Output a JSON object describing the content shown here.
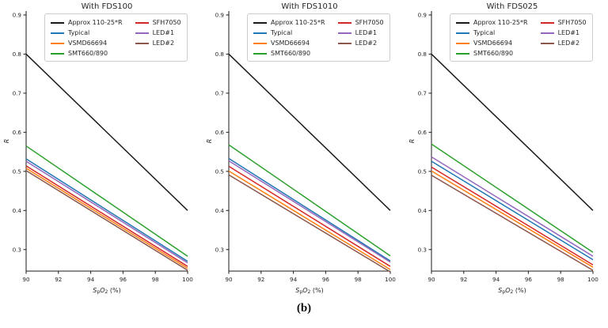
{
  "caption": "(b)",
  "axis_style": {
    "spine_color": "#1a1a1a",
    "tick_color": "#1a1a1a",
    "text_color": "#262626",
    "background": "#ffffff"
  },
  "chart_data": [
    {
      "type": "line",
      "title": "With FDS100",
      "xlabel": "SpO2 (%)",
      "xlabel_rich": [
        [
          "S",
          "i"
        ],
        [
          "p",
          "sub"
        ],
        [
          "O",
          "i"
        ],
        [
          "2",
          "sub"
        ],
        [
          " (%)",
          ""
        ]
      ],
      "ylabel": "R",
      "xlim": [
        90,
        100
      ],
      "ylim": [
        0.245,
        0.91
      ],
      "xticks": [
        90,
        92,
        94,
        96,
        98,
        100
      ],
      "yticks": [
        0.3,
        0.4,
        0.5,
        0.6,
        0.7,
        0.8,
        0.9
      ],
      "grid": false,
      "legend": {
        "position": "upper center",
        "columns": 2
      },
      "x": [
        90,
        100
      ],
      "series": [
        {
          "name": "Approx 110-25*R",
          "color": "#1a1a1a",
          "values": [
            0.8,
            0.4
          ]
        },
        {
          "name": "Typical",
          "color": "#1f77b4",
          "values": [
            0.532,
            0.27
          ]
        },
        {
          "name": "VSMD66694",
          "color": "#ff7f0e",
          "values": [
            0.508,
            0.252
          ]
        },
        {
          "name": "SMT660/890",
          "color": "#2ca02c",
          "values": [
            0.565,
            0.283
          ]
        },
        {
          "name": "SFH7050",
          "color": "#d62728",
          "values": [
            0.514,
            0.257
          ]
        },
        {
          "name": "LED#1",
          "color": "#9467bd",
          "values": [
            0.526,
            0.266
          ]
        },
        {
          "name": "LED#2",
          "color": "#8c564b",
          "values": [
            0.502,
            0.247
          ]
        }
      ]
    },
    {
      "type": "line",
      "title": "With FDS1010",
      "xlabel": "SpO2 (%)",
      "xlabel_rich": [
        [
          "S",
          "i"
        ],
        [
          "p",
          "sub"
        ],
        [
          "O",
          "i"
        ],
        [
          "2",
          "sub"
        ],
        [
          " (%)",
          ""
        ]
      ],
      "ylabel": "R",
      "xlim": [
        90,
        100
      ],
      "ylim": [
        0.245,
        0.91
      ],
      "xticks": [
        90,
        92,
        94,
        96,
        98,
        100
      ],
      "yticks": [
        0.3,
        0.4,
        0.5,
        0.6,
        0.7,
        0.8,
        0.9
      ],
      "grid": false,
      "legend": {
        "position": "upper center",
        "columns": 2
      },
      "x": [
        90,
        100
      ],
      "series": [
        {
          "name": "Approx 110-25*R",
          "color": "#1a1a1a",
          "values": [
            0.8,
            0.4
          ]
        },
        {
          "name": "Typical",
          "color": "#1f77b4",
          "values": [
            0.533,
            0.271
          ]
        },
        {
          "name": "VSMD66694",
          "color": "#ff7f0e",
          "values": [
            0.501,
            0.249
          ]
        },
        {
          "name": "SMT660/890",
          "color": "#2ca02c",
          "values": [
            0.568,
            0.284
          ]
        },
        {
          "name": "SFH7050",
          "color": "#d62728",
          "values": [
            0.513,
            0.257
          ]
        },
        {
          "name": "LED#1",
          "color": "#9467bd",
          "values": [
            0.527,
            0.268
          ]
        },
        {
          "name": "LED#2",
          "color": "#8c564b",
          "values": [
            0.491,
            0.243
          ]
        }
      ]
    },
    {
      "type": "line",
      "title": "With FDS025",
      "xlabel": "SpO2 (%)",
      "xlabel_rich": [
        [
          "S",
          "i"
        ],
        [
          "p",
          "sub"
        ],
        [
          "O",
          "i"
        ],
        [
          "2",
          "sub"
        ],
        [
          " (%)",
          ""
        ]
      ],
      "ylabel": "R",
      "xlim": [
        90,
        100
      ],
      "ylim": [
        0.245,
        0.91
      ],
      "xticks": [
        90,
        92,
        94,
        96,
        98,
        100
      ],
      "yticks": [
        0.3,
        0.4,
        0.5,
        0.6,
        0.7,
        0.8,
        0.9
      ],
      "grid": false,
      "legend": {
        "position": "upper center",
        "columns": 2
      },
      "x": [
        90,
        100
      ],
      "series": [
        {
          "name": "Approx 110-25*R",
          "color": "#1a1a1a",
          "values": [
            0.8,
            0.4
          ]
        },
        {
          "name": "Typical",
          "color": "#1f77b4",
          "values": [
            0.526,
            0.274
          ]
        },
        {
          "name": "VSMD66694",
          "color": "#ff7f0e",
          "values": [
            0.501,
            0.255
          ]
        },
        {
          "name": "SMT660/890",
          "color": "#2ca02c",
          "values": [
            0.57,
            0.293
          ]
        },
        {
          "name": "SFH7050",
          "color": "#d62728",
          "values": [
            0.511,
            0.261
          ]
        },
        {
          "name": "LED#1",
          "color": "#9467bd",
          "values": [
            0.537,
            0.283
          ]
        },
        {
          "name": "LED#2",
          "color": "#8c564b",
          "values": [
            0.49,
            0.247
          ]
        }
      ]
    }
  ]
}
